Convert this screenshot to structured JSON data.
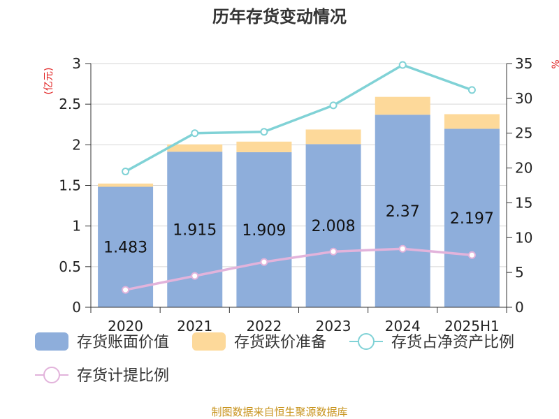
{
  "chart_data": {
    "type": "bar",
    "title": "历年存货变动情况",
    "ylabel_left": "(亿元)",
    "ylabel_right": "%",
    "categories": [
      "2020",
      "2021",
      "2022",
      "2023",
      "2024",
      "2025H1"
    ],
    "ylim_left": [
      0,
      3
    ],
    "yticks_left": [
      "0",
      "0.5",
      "1",
      "1.5",
      "2",
      "2.5",
      "3"
    ],
    "ylim_right": [
      0,
      35
    ],
    "yticks_right": [
      "0",
      "5",
      "10",
      "15",
      "20",
      "25",
      "30",
      "35"
    ],
    "series": [
      {
        "name": "存货账面价值",
        "kind": "bar",
        "axis": "left",
        "color": "#8eaedb",
        "values": [
          1.483,
          1.915,
          1.909,
          2.008,
          2.37,
          2.197
        ],
        "labels": [
          "1.483",
          "1.915",
          "1.909",
          "2.008",
          "2.37",
          "2.197"
        ]
      },
      {
        "name": "存货跌价准备",
        "kind": "bar",
        "axis": "left",
        "color": "#fdd99a",
        "values": [
          0.04,
          0.09,
          0.13,
          0.18,
          0.22,
          0.18
        ]
      },
      {
        "name": "存货占净资产比例",
        "kind": "line",
        "axis": "right",
        "color": "#80d2d6",
        "values": [
          19.5,
          25.0,
          25.2,
          29.0,
          34.8,
          31.2
        ]
      },
      {
        "name": "存货计提比例",
        "kind": "line",
        "axis": "right",
        "color": "#e2b3db",
        "values": [
          2.5,
          4.5,
          6.5,
          8.0,
          8.4,
          7.5
        ]
      }
    ],
    "grid": true,
    "legend_position": "bottom"
  },
  "source": "制图数据来自恒生聚源数据库"
}
